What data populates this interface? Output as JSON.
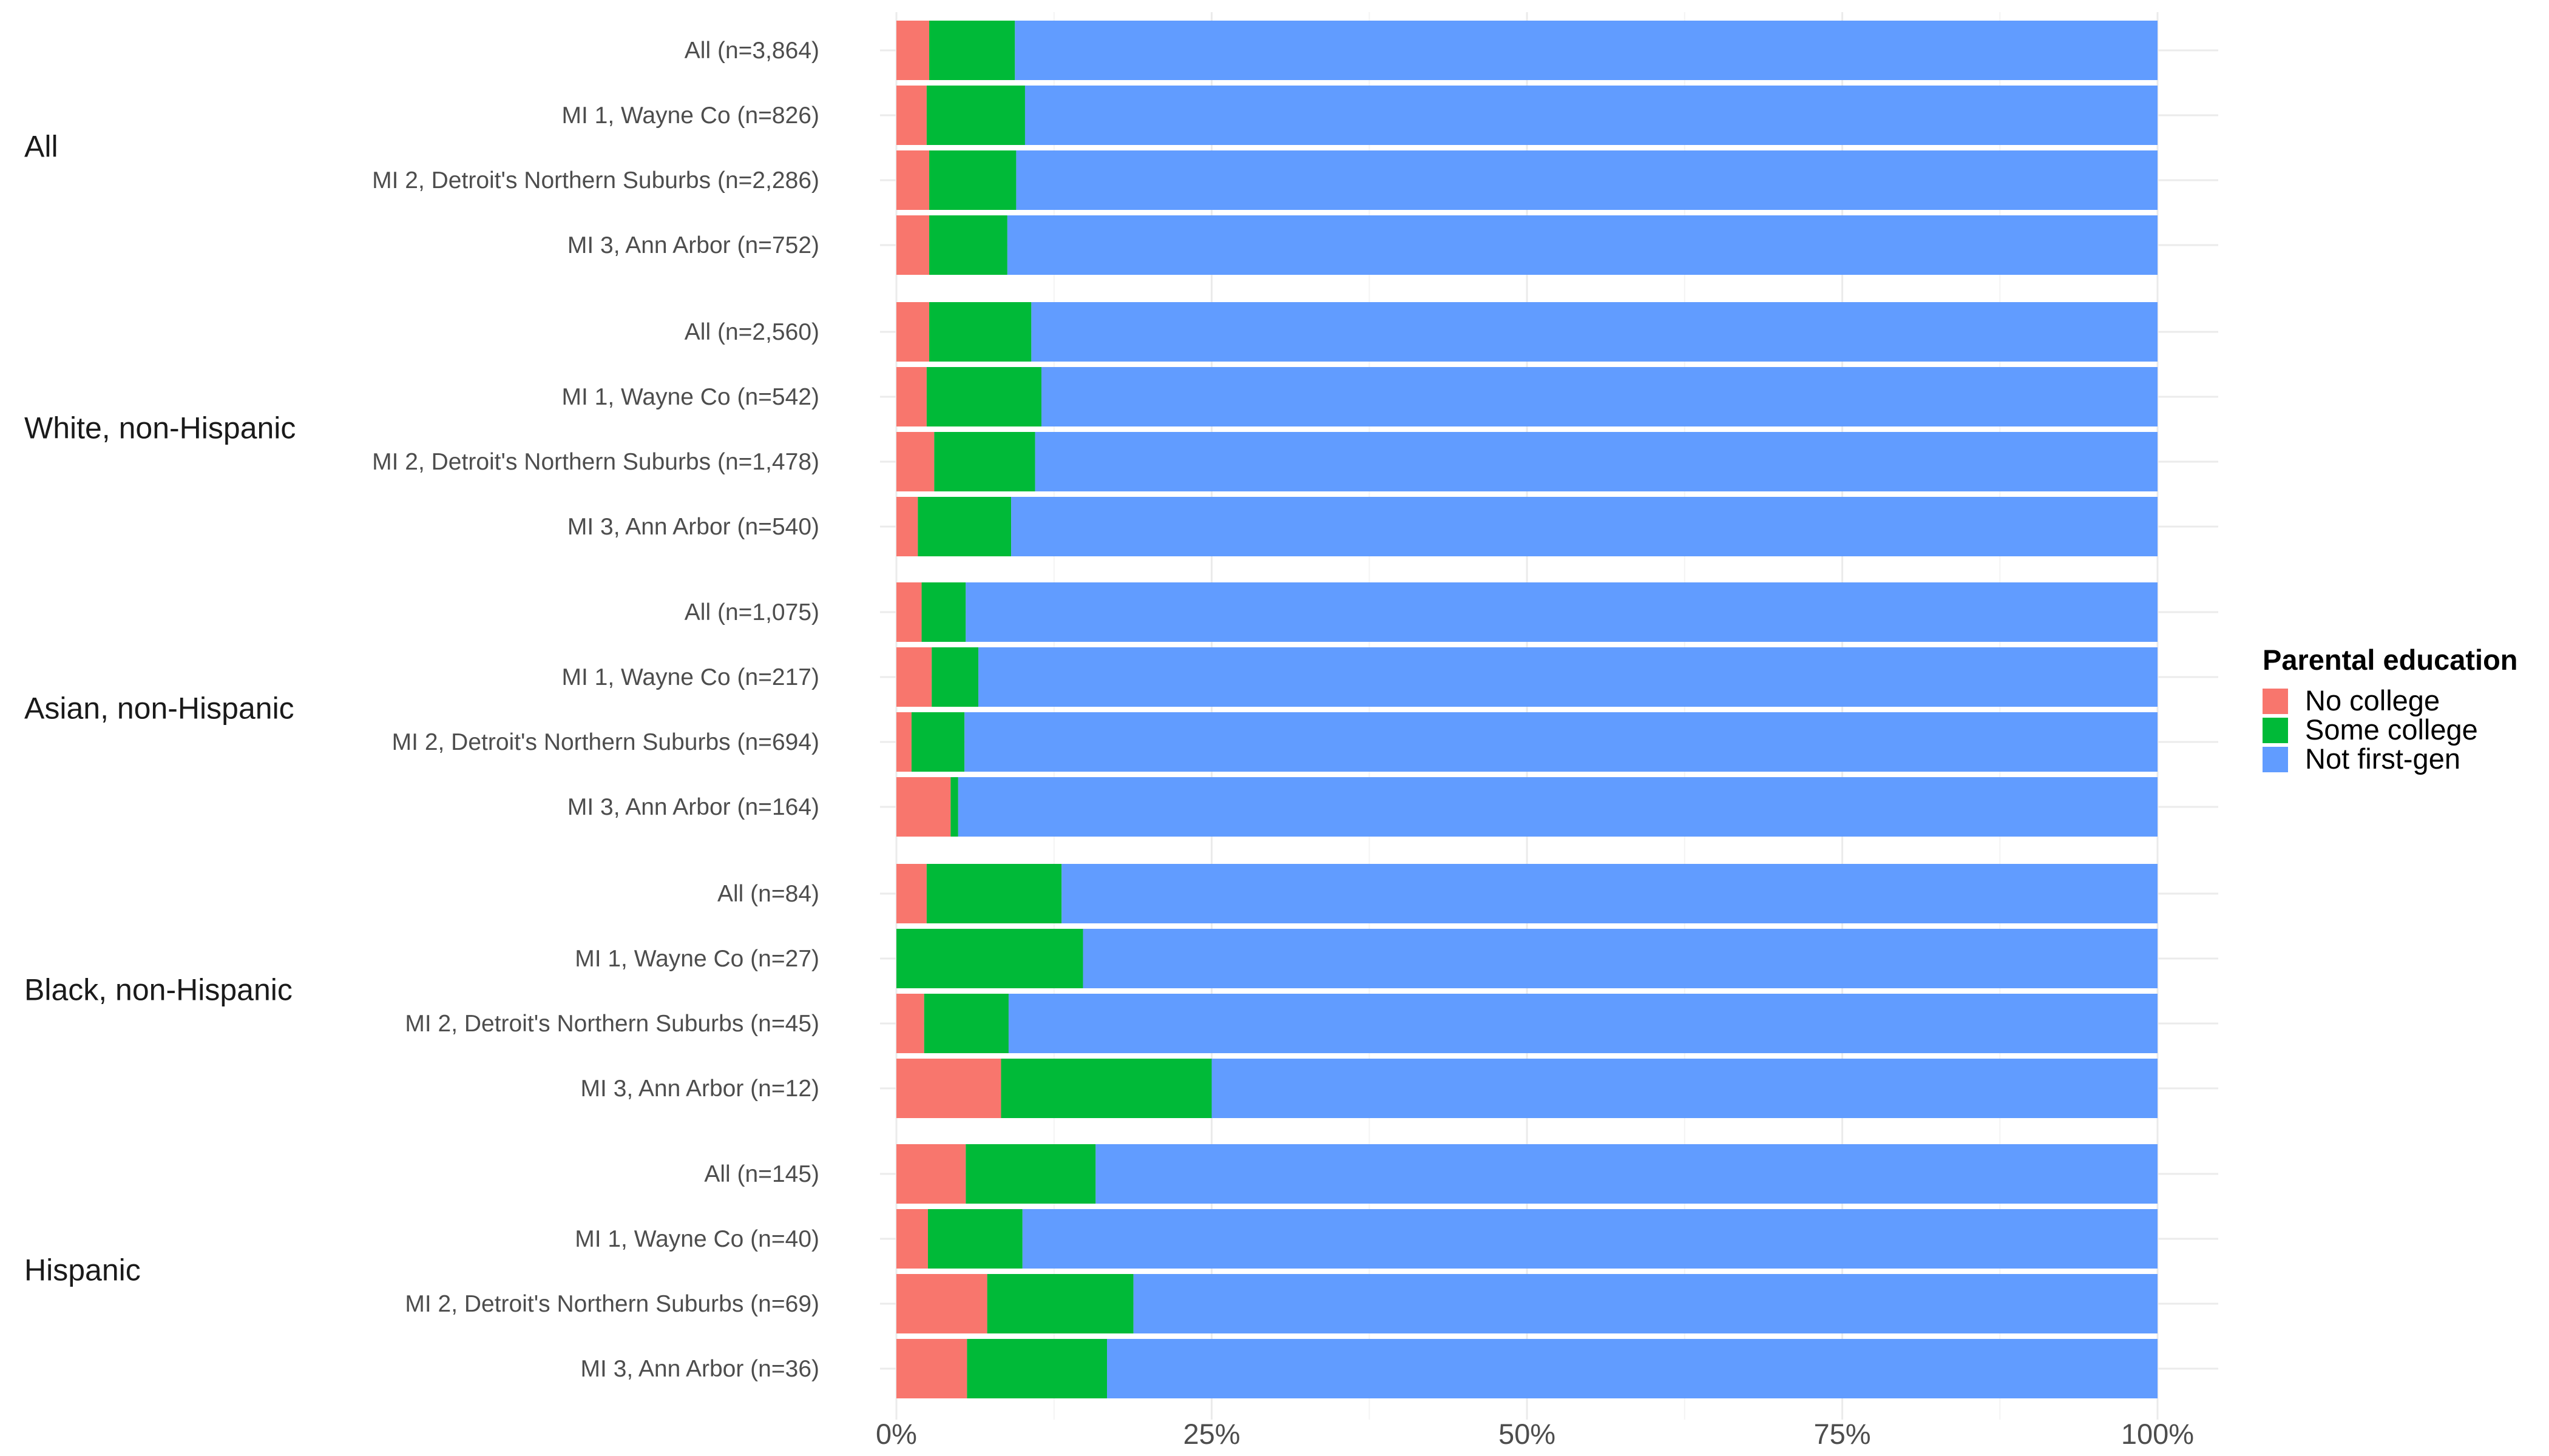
{
  "chart_data": {
    "type": "bar",
    "orientation": "horizontal",
    "stacked": true,
    "x_ticks": [
      "0%",
      "25%",
      "50%",
      "75%",
      "100%"
    ],
    "xlim": [
      0,
      100
    ],
    "grid": true,
    "legend": {
      "title": "Parental education",
      "position": "right",
      "entries": [
        "No college",
        "Some college",
        "Not first-gen"
      ]
    },
    "colors": [
      "#F8766D",
      "#00BA38",
      "#619CFF"
    ],
    "groups": [
      {
        "label": "All",
        "rows": [
          {
            "label": "All (n=3,864)",
            "values": [
              2.6,
              6.8,
              90.6
            ]
          },
          {
            "label": "MI 1, Wayne Co (n=826)",
            "values": [
              2.4,
              7.8,
              89.8
            ]
          },
          {
            "label": "MI 2, Detroit's Northern Suburbs (n=2,286)",
            "values": [
              2.6,
              6.9,
              90.5
            ]
          },
          {
            "label": "MI 3, Ann Arbor (n=752)",
            "values": [
              2.6,
              6.2,
              91.2
            ]
          }
        ]
      },
      {
        "label": "White, non-Hispanic",
        "rows": [
          {
            "label": "All (n=2,560)",
            "values": [
              2.6,
              8.1,
              89.3
            ]
          },
          {
            "label": "MI 1, Wayne Co (n=542)",
            "values": [
              2.4,
              9.1,
              88.5
            ]
          },
          {
            "label": "MI 2, Detroit's Northern Suburbs (n=1,478)",
            "values": [
              3.0,
              8.0,
              89.0
            ]
          },
          {
            "label": "MI 3, Ann Arbor (n=540)",
            "values": [
              1.7,
              7.4,
              90.9
            ]
          }
        ]
      },
      {
        "label": "Asian, non-Hispanic",
        "rows": [
          {
            "label": "All (n=1,075)",
            "values": [
              2.0,
              3.5,
              94.5
            ]
          },
          {
            "label": "MI 1, Wayne Co (n=217)",
            "values": [
              2.8,
              3.7,
              93.5
            ]
          },
          {
            "label": "MI 2, Detroit's Northern Suburbs (n=694)",
            "values": [
              1.2,
              4.2,
              94.6
            ]
          },
          {
            "label": "MI 3, Ann Arbor (n=164)",
            "values": [
              4.3,
              0.6,
              95.1
            ]
          }
        ]
      },
      {
        "label": "Black, non-Hispanic",
        "rows": [
          {
            "label": "All (n=84)",
            "values": [
              2.4,
              10.7,
              86.9
            ]
          },
          {
            "label": "MI 1, Wayne Co (n=27)",
            "values": [
              0.0,
              14.8,
              85.2
            ]
          },
          {
            "label": "MI 2, Detroit's Northern Suburbs (n=45)",
            "values": [
              2.2,
              6.7,
              91.1
            ]
          },
          {
            "label": "MI 3, Ann Arbor (n=12)",
            "values": [
              8.3,
              16.7,
              75.0
            ]
          }
        ]
      },
      {
        "label": "Hispanic",
        "rows": [
          {
            "label": "All (n=145)",
            "values": [
              5.5,
              10.3,
              84.2
            ]
          },
          {
            "label": "MI 1, Wayne Co (n=40)",
            "values": [
              2.5,
              7.5,
              90.0
            ]
          },
          {
            "label": "MI 2, Detroit's Northern Suburbs (n=69)",
            "values": [
              7.2,
              11.6,
              81.2
            ]
          },
          {
            "label": "MI 3, Ann Arbor (n=36)",
            "values": [
              5.6,
              11.1,
              83.3
            ]
          }
        ]
      }
    ]
  }
}
